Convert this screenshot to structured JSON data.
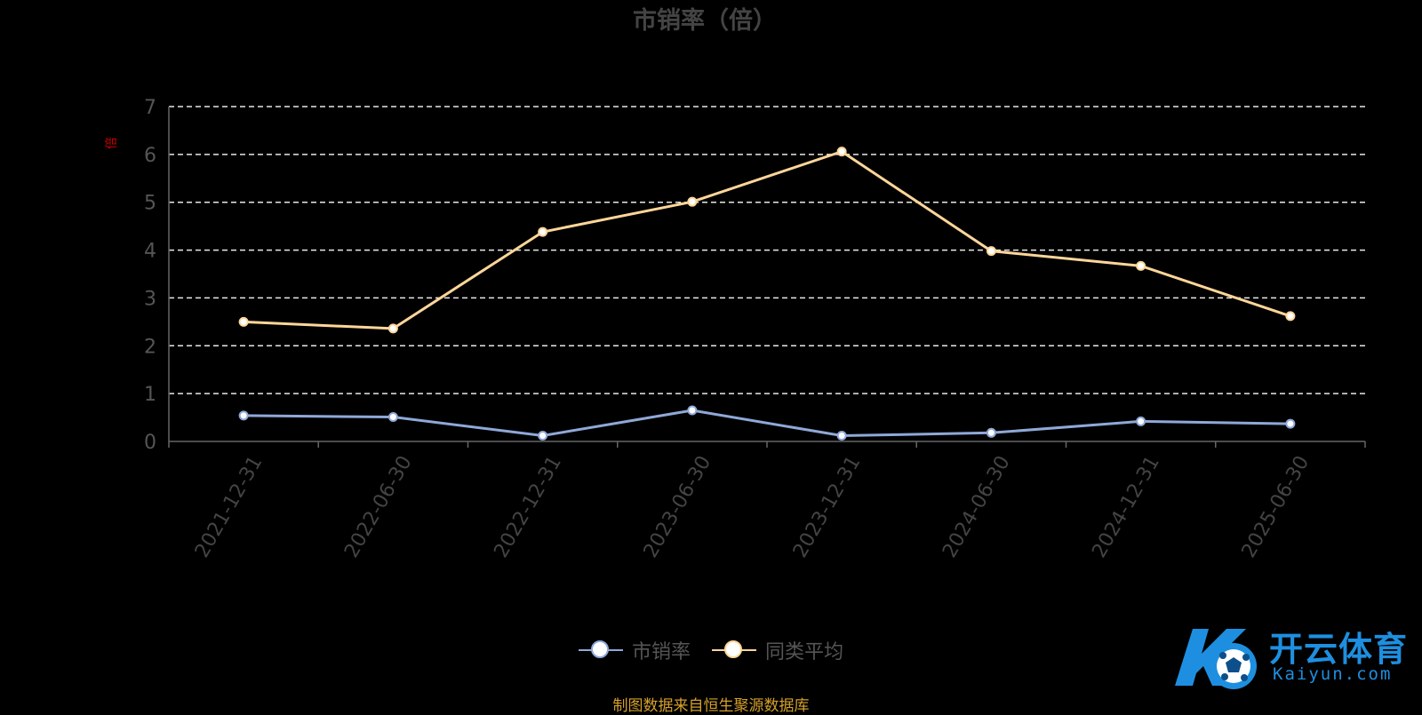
{
  "chart_data": {
    "type": "line",
    "title": "市销率（倍）",
    "ylabel": "倍",
    "ylim": [
      0,
      7
    ],
    "yticks": [
      0,
      1,
      2,
      3,
      4,
      5,
      6,
      7
    ],
    "grid": true,
    "legend_position": "bottom-center",
    "categories": [
      "2021-12-31",
      "2022-06-30",
      "2022-12-31",
      "2023-06-30",
      "2023-12-31",
      "2024-06-30",
      "2024-12-31",
      "2025-06-30"
    ],
    "series": [
      {
        "name": "市销率",
        "color": "#8fa8d8",
        "values": [
          0.54,
          0.51,
          0.12,
          0.65,
          0.12,
          0.18,
          0.42,
          0.37
        ]
      },
      {
        "name": "同类平均",
        "color": "#ffd699",
        "values": [
          2.5,
          2.36,
          4.38,
          5.01,
          6.06,
          3.98,
          3.67,
          2.62
        ]
      }
    ]
  },
  "legend": [
    {
      "label": "市销率",
      "color": "#8fa8d8"
    },
    {
      "label": "同类平均",
      "color": "#ffd699"
    }
  ],
  "footer": {
    "source": "制图数据来自恒生聚源数据库"
  },
  "watermark": {
    "name": "开云体育",
    "domain": "Kaiyun.com",
    "icon": "kaiyun-soccer-logo-icon",
    "color": "#1e8fe0"
  }
}
